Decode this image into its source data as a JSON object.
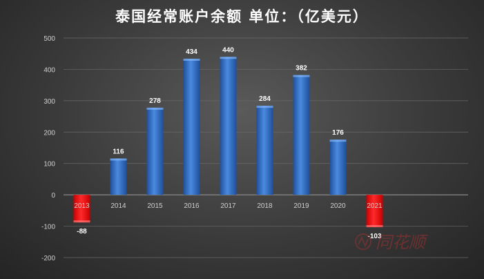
{
  "chart_data": {
    "type": "bar",
    "title": "泰国经常账户余额 单位：（亿美元）",
    "categories": [
      "2013",
      "2014",
      "2015",
      "2016",
      "2017",
      "2018",
      "2019",
      "2020",
      "2021"
    ],
    "values": [
      -88,
      116,
      278,
      434,
      440,
      284,
      382,
      176,
      -103
    ],
    "ylim": [
      -200,
      500
    ],
    "yticks": [
      500,
      400,
      300,
      200,
      100,
      0,
      -100,
      -200
    ],
    "grid": true,
    "colors": {
      "positive": "#3a78c9",
      "negative": "#ff1a1a",
      "background": "#3a3a3a",
      "gridline": "#6a6a6a"
    }
  },
  "watermark": {
    "text": "同花顺"
  }
}
